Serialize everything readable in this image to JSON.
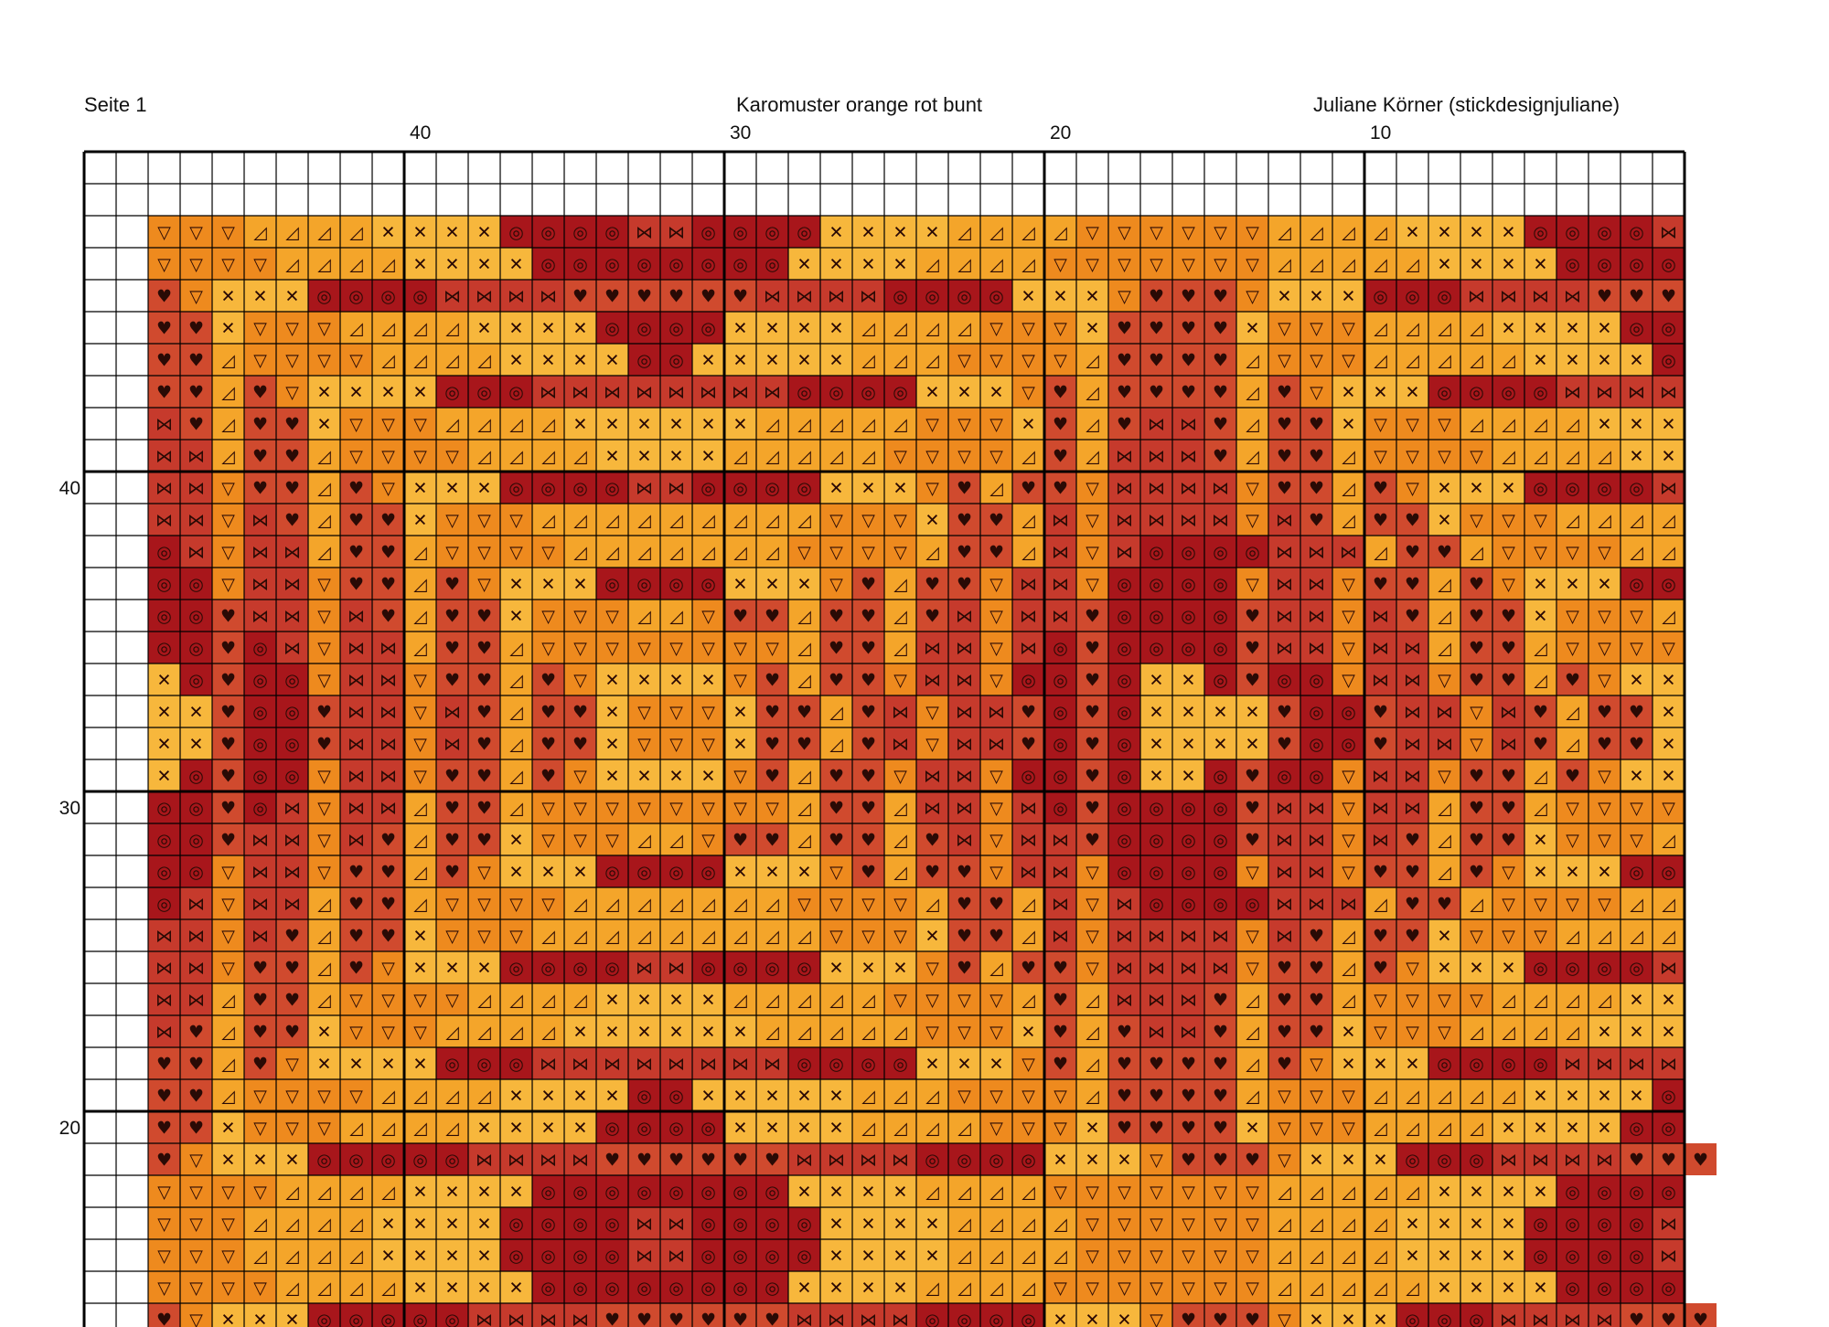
{
  "header": {
    "page": "Seite 1",
    "title": "Karomuster orange rot bunt",
    "author": "Juliane Körner (stickdesignjuliane)"
  },
  "column_labels": [
    40,
    30,
    20,
    10
  ],
  "row_labels": [
    40,
    30,
    20
  ],
  "pattern": {
    "symbols": {
      "v": {
        "glyph": "▽",
        "color": "#ee8a1e"
      },
      "a": {
        "glyph": "◿",
        "color": "#f4a52a"
      },
      "x": {
        "glyph": "✕",
        "color": "#f7b73c"
      },
      "o": {
        "glyph": "◎",
        "color": "#a8161b"
      },
      "h": {
        "glyph": "⋈",
        "color": "#c63a2c"
      },
      "t": {
        "glyph": "♥",
        "color": "#d04a2e"
      }
    },
    "rows": [
      "vvvaaaaxxxxoooohhooooxxxxaaaavvvvvvaaaaxxxxooooh",
      "vvvvaaaaxxxxooooooooxxxxaaaavvvvvvvaaaaaxxxxoooo",
      "tvxxxoooohhhhtttttthhhhooooxxxvtttvxxxooohhhhttt",
      "ttxvvvaaaaxxxxooooxxxxaaaavvvxttttxvvvaaaaxxxxoo",
      "ttavvvvaaaaxxxxooxxxxxaaavvvvattttavvvaaaaaxxxxo",
      "ttatvxxxxooohhhhhhhhooooxxxvtattttatvxxxoooohhhh",
      "htattxvvvaaaaxxxxxxaaaaavvvxtathhtattxvvvaaaaxxx",
      "hhattavvvvaaaaxxxxaaaaavvvvatahhhtattavvvvaaaaxx",
      "hhvttatvxxxoooohhooooxxxvtattvhhhhvttatvxxxooooh",
      "hhvhtattxvvvaaaaaaaaavvvxttahvhhhhvhtattxvvvaaaa",
      "ohvhhattavvvvaaaaaaavvvvattahvhoooohhhattavvvvaa",
      "oovhhvttatvxxxooooxxxvtattvhhvoooovhhvttatvxxxoo",
      "oothhvhtattxvvvaavttattathvhhtoooothhvhtattxvvva",
      "ootohvhhattavvvvvvvvattahhvhotoooothhvhhattavvvv",
      "xotoovhhvttatvxxxxvtattvhhvootoxxotoovhhvttatvxx",
      "xxtoothhvhtattxvvvxttathvhhtotoxxxxtoothhvhtattx",
      "xxtoothhvhtattxvvvxttathvhhtotoxxxxtoothhvhtattx",
      "xotoovhhvttatvxxxxvtattvhhvootoxxotoovhhvttatvxx",
      "ootohvhhattavvvvvvvvattahhvhotoooothhvhhattavvvv",
      "oothhvhtattxvvvaavttattathvhhtoooothhvhtattxvvva",
      "oovhhvttatvxxxooooxxxvtattvhhvoooovhhvttatvxxxoo",
      "ohvhhattavvvvaaaaaaavvvvattahvhoooohhhattavvvvaa",
      "hhvhtattxvvvaaaaaaaaavvvxttahvhhhhvhtattxvvvaaaa",
      "hhvttatvxxxoooohhooooxxxvtattvhhhhvttatvxxxooooh",
      "hhattavvvvaaaaxxxxaaaaavvvvatahhhtattavvvvaaaaxx",
      "htattxvvvaaaaxxxxxxaaaaavvvxtathhtattxvvvaaaaxxx",
      "ttatvxxxxooohhhhhhhhooooxxxvtattttatvxxxoooohhhh",
      "ttavvvvaaaaxxxxooxxxxxaaavvvvattttavvvaaaaaxxxxo",
      "ttxvvvaaaaxxxxooooxxxxaaaavvvxttttxvvvaaaaxxxxoo",
      "tvxxxooooohhhhtttttthhhhooooxxxvtttvxxxooohhhhttt",
      "vvvvaaaaxxxxooooooooxxxxaaaavvvvvvvaaaaaxxxxoooo",
      "vvvaaaaxxxxoooohhooooxxxxaaaavvvvvvaaaaxxxxooooh",
      "vvvaaaaxxxxoooohhooooxxxxaaaavvvvvvaaaaxxxxooooh",
      "vvvvaaaaxxxxooooooooxxxxaaaavvvvvvvaaaaaxxxxoooo",
      "tvxxxooooohhhhtttttthhhhooooxxxvtttvxxxooohhhhttt"
    ]
  }
}
